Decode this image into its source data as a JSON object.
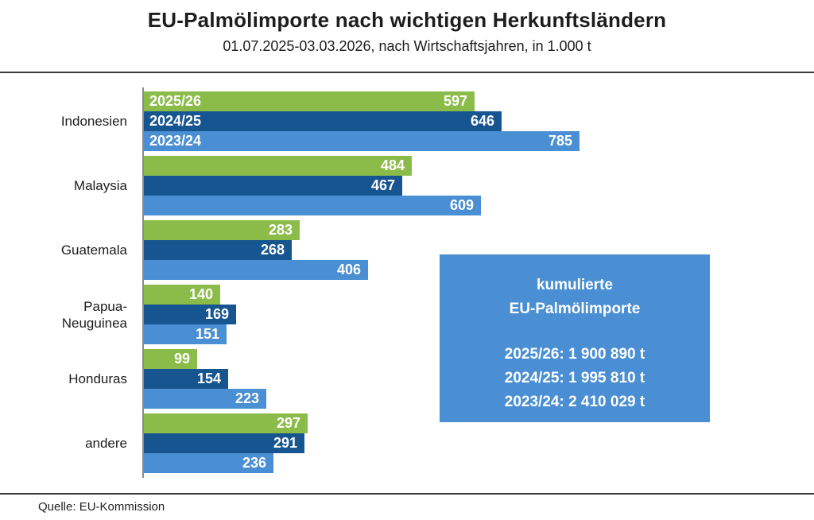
{
  "chart_data": {
    "type": "bar",
    "orientation": "horizontal",
    "title": "EU-Palmölimporte nach wichtigen Herkunftsländern",
    "subtitle": "01.07.2025-03.03.2026, nach Wirtschaftsjahren, in 1.000 t",
    "unit": "1.000 t",
    "categories": [
      "Indonesien",
      "Malaysia",
      "Guatemala",
      "Papua-\nNeuguinea",
      "Honduras",
      "andere"
    ],
    "series": [
      {
        "name": "2025/26",
        "color": "#8BBC49",
        "values": [
          597,
          484,
          283,
          140,
          99,
          297
        ]
      },
      {
        "name": "2024/25",
        "color": "#175590",
        "values": [
          646,
          467,
          268,
          169,
          154,
          291
        ]
      },
      {
        "name": "2023/24",
        "color": "#4A8FD3",
        "values": [
          785,
          609,
          406,
          151,
          223,
          236
        ]
      }
    ],
    "xlim": [
      0,
      800
    ],
    "grid": false,
    "legend_position": "inside-bars-first-group",
    "value_labels": "inside-end",
    "annotation_box": {
      "title_lines": [
        "kumulierte",
        "EU-Palmölimporte"
      ],
      "lines": [
        "2025/26: 1 900 890 t",
        "2024/25: 1 995 810 t",
        "2023/24: 2 410 029 t"
      ],
      "background": "#4A8FD3",
      "text_color": "#FFFFFF"
    },
    "source": "Quelle: EU-Kommission"
  },
  "colors": {
    "series_green": "#8BBC49",
    "series_dark_blue": "#175590",
    "series_light_blue": "#4A8FD3",
    "divider": "#3b3b3b",
    "axis": "#8c8c8c",
    "bar_text": "#FFFFFF"
  }
}
